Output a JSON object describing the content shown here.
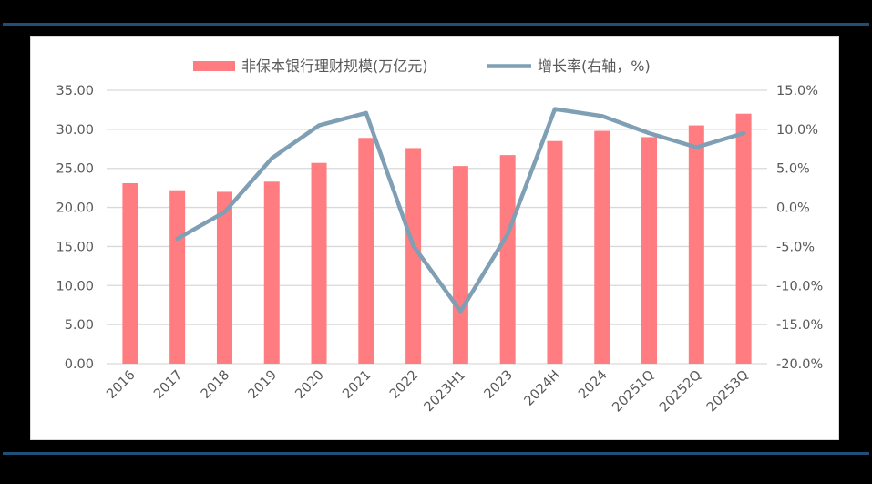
{
  "page": {
    "background": "#000000",
    "rule_color": "#1F4E79",
    "panel_background": "#FFFFFF"
  },
  "legend": {
    "bar_label": "非保本银行理财规模(万亿元)",
    "line_label": "增长率(右轴，%)"
  },
  "colors": {
    "bar": "#FF7C80",
    "line": "#7F9FB5",
    "grid": "#D9D9D9",
    "tick_text": "#595959"
  },
  "chart_data": {
    "type": "bar+line",
    "title": "",
    "xlabel": "",
    "ylabel": "非保本银行理财规模(万亿元)",
    "y2label": "增长率(右轴，%)",
    "categories": [
      "2016",
      "2017",
      "2018",
      "2019",
      "2020",
      "2021",
      "2022",
      "2023H1",
      "2023",
      "2024H",
      "2024",
      "20251Q",
      "20252Q",
      "20253Q"
    ],
    "series": [
      {
        "name": "非保本银行理财规模(万亿元)",
        "type": "bar",
        "axis": "left",
        "values": [
          23.1,
          22.2,
          22.0,
          23.3,
          25.7,
          28.9,
          27.6,
          25.3,
          26.7,
          28.5,
          29.8,
          29.0,
          30.5,
          32.0
        ]
      },
      {
        "name": "增长率(右轴，%)",
        "type": "line",
        "axis": "right",
        "values": [
          null,
          -4.0,
          -0.6,
          6.3,
          10.5,
          12.1,
          -4.9,
          -13.3,
          -3.4,
          12.6,
          11.7,
          9.5,
          7.7,
          9.5
        ]
      }
    ],
    "ylim": [
      0,
      35
    ],
    "y2lim": [
      -20,
      15
    ],
    "yticks": [
      "0.00",
      "5.00",
      "10.00",
      "15.00",
      "20.00",
      "25.00",
      "30.00",
      "35.00"
    ],
    "y2ticks": [
      "-20.0%",
      "-15.0%",
      "-10.0%",
      "-5.0%",
      "0.0%",
      "5.0%",
      "10.0%",
      "15.0%"
    ],
    "grid": true,
    "legend_position": "top"
  }
}
